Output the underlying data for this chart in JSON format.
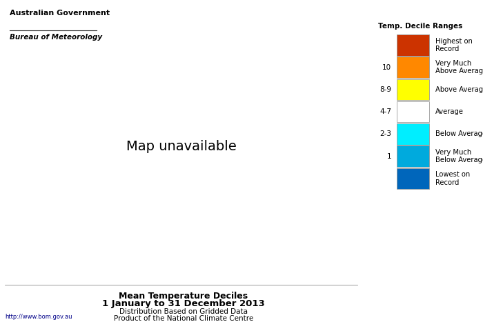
{
  "title_line1": "Mean Temperature Deciles",
  "title_line2": "1 January to 31 December 2013",
  "title_line3": "Distribution Based on Gridded Data",
  "title_line4": "Product of the National Climate Centre",
  "legend_title": "Temp. Decile Ranges",
  "legend_entries": [
    {
      "label": "Highest on\nRecord",
      "color": "#CC3300",
      "tick": ""
    },
    {
      "label": "Very Much\nAbove Average",
      "color": "#FF8800",
      "tick": "10"
    },
    {
      "label": "Above Average",
      "color": "#FFFF00",
      "tick": "8-9"
    },
    {
      "label": "Average",
      "color": "#FFFFFF",
      "tick": "4-7"
    },
    {
      "label": "Below Average",
      "color": "#00EEFF",
      "tick": "2-3"
    },
    {
      "label": "Very Much\nBelow Average",
      "color": "#00AADD",
      "tick": "1"
    },
    {
      "label": "Lowest on\nRecord",
      "color": "#0066BB",
      "tick": ""
    }
  ],
  "background_color": "#FFFFFF",
  "ocean_color": "#DDEEFF",
  "url_text": "http://www.bom.gov.au",
  "gov_line1": "Australian Government",
  "gov_line2": "Bureau of Meteorology",
  "map_extent": [
    112,
    155,
    -44,
    -10
  ]
}
